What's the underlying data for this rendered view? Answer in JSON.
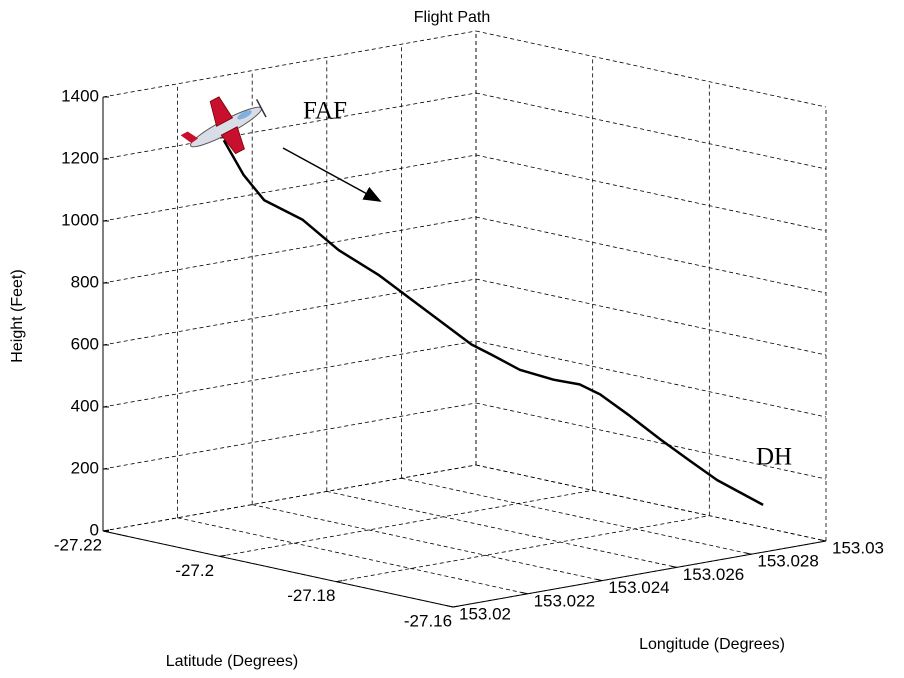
{
  "chart_data": {
    "type": "line3d",
    "title": "Flight Path",
    "xlabel": "Latitude (Degrees)",
    "ylabel": "Longitude (Degrees)",
    "zlabel": "Height (Feet)",
    "x": [
      -27.2108,
      -27.2093,
      -27.2077,
      -27.205,
      -27.202,
      -27.1989,
      -27.1959,
      -27.192,
      -27.1905,
      -27.1882,
      -27.1856,
      -27.1837,
      -27.1821,
      -27.1798,
      -27.1775,
      -27.1752,
      -27.1729,
      -27.1695
    ],
    "y": [
      153.0218,
      153.0221,
      153.0224,
      153.023,
      153.0235,
      153.0241,
      153.0247,
      153.0255,
      153.0258,
      153.0262,
      153.0267,
      153.0271,
      153.0274,
      153.0278,
      153.0283,
      153.0287,
      153.0291,
      153.0298
    ],
    "z": [
      1260,
      1147,
      1066,
      1002,
      905,
      824,
      727,
      599,
      566,
      518,
      486,
      470,
      438,
      373,
      292,
      227,
      163,
      82
    ],
    "color": "#000000",
    "xlim": [
      -27.22,
      -27.16
    ],
    "xticks": [
      -27.22,
      -27.2,
      -27.18,
      -27.16
    ],
    "ylim": [
      153.02,
      153.03
    ],
    "yticks": [
      153.02,
      153.022,
      153.024,
      153.026,
      153.028,
      153.03
    ],
    "zlim": [
      0,
      1400
    ],
    "zticks": [
      0,
      200,
      400,
      600,
      800,
      1000,
      1200,
      1400
    ],
    "grid": true,
    "annotations": [
      "FAF",
      "DH"
    ]
  }
}
